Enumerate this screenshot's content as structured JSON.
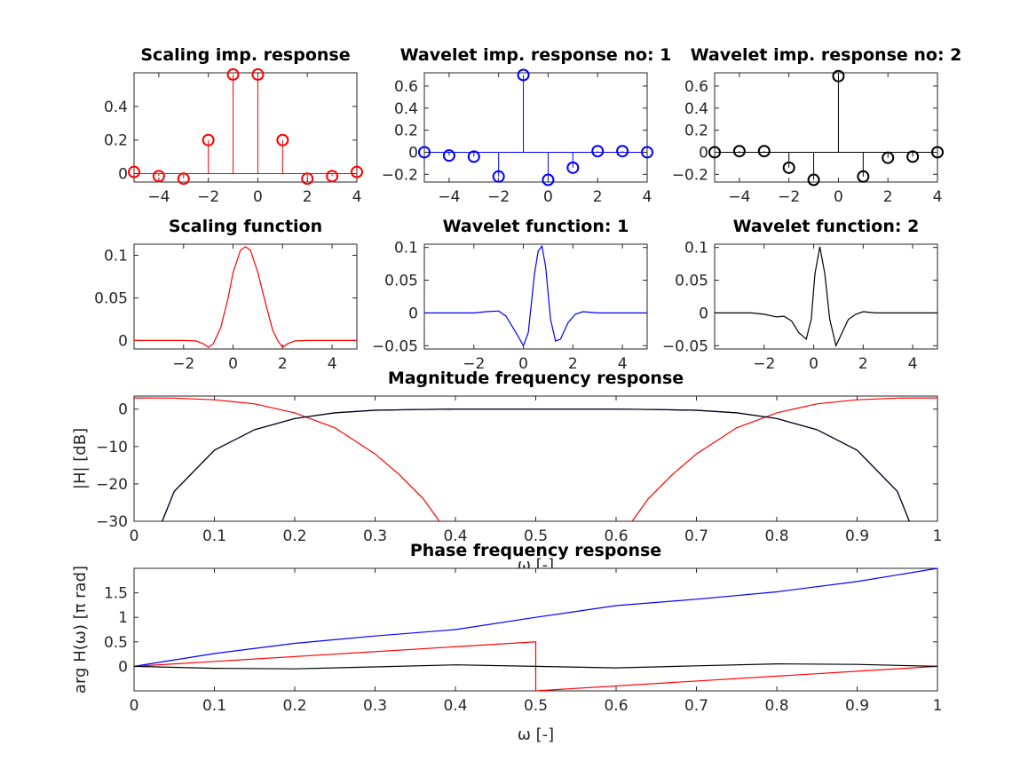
{
  "chart_data": [
    {
      "type": "stem",
      "title": "Scaling imp. response",
      "color": "#ff0000",
      "x": [
        -5,
        -4,
        -3,
        -2,
        -1,
        0,
        1,
        2,
        3,
        4
      ],
      "values": [
        0.01,
        -0.015,
        -0.03,
        0.2,
        0.59,
        0.59,
        0.2,
        -0.03,
        -0.015,
        0.01
      ],
      "xlim": [
        -5,
        4
      ],
      "ylim": [
        -0.05,
        0.6
      ],
      "xticks": [
        -4,
        -2,
        0,
        2,
        4
      ],
      "yticks": [
        0,
        0.2,
        0.4
      ]
    },
    {
      "type": "stem",
      "title": "Wavelet imp. response no: 1",
      "color": "#0000ff",
      "x": [
        -5,
        -4,
        -3,
        -2,
        -1,
        0,
        1,
        2,
        3,
        4
      ],
      "values": [
        0.0,
        -0.03,
        -0.04,
        -0.22,
        0.7,
        -0.25,
        -0.14,
        0.01,
        0.01,
        0.0
      ],
      "xlim": [
        -5,
        4
      ],
      "ylim": [
        -0.27,
        0.72
      ],
      "xticks": [
        -4,
        -2,
        0,
        2,
        4
      ],
      "yticks": [
        -0.2,
        0,
        0.2,
        0.4,
        0.6
      ]
    },
    {
      "type": "stem",
      "title": "Wavelet imp. response no: 2",
      "color": "#000000",
      "x": [
        -5,
        -4,
        -3,
        -2,
        -1,
        0,
        1,
        2,
        3,
        4
      ],
      "values": [
        0.0,
        0.01,
        0.01,
        -0.14,
        -0.25,
        0.69,
        -0.22,
        -0.05,
        -0.04,
        0.0
      ],
      "xlim": [
        -5,
        4
      ],
      "ylim": [
        -0.27,
        0.72
      ],
      "xticks": [
        -4,
        -2,
        0,
        2,
        4
      ],
      "yticks": [
        -0.2,
        0,
        0.2,
        0.4,
        0.6
      ]
    },
    {
      "type": "line",
      "title": "Scaling function",
      "color": "#ff0000",
      "x": [
        -4,
        -2,
        -1.5,
        -1.2,
        -1,
        -0.8,
        -0.5,
        -0.2,
        0,
        0.3,
        0.5,
        0.7,
        1,
        1.3,
        1.6,
        1.8,
        2,
        2.2,
        2.5,
        3,
        5
      ],
      "values": [
        0,
        0,
        -0.0005,
        -0.004,
        -0.008,
        -0.004,
        0.015,
        0.05,
        0.08,
        0.106,
        0.11,
        0.106,
        0.08,
        0.045,
        0.012,
        0.0,
        -0.008,
        -0.004,
        -0.0005,
        0,
        0
      ],
      "xlim": [
        -4,
        5
      ],
      "ylim": [
        -0.01,
        0.113
      ],
      "xticks": [
        -2,
        0,
        2,
        4
      ],
      "yticks": [
        0,
        0.05,
        0.1
      ]
    },
    {
      "type": "line",
      "title": "Wavelet function: 1",
      "color": "#0000ff",
      "x": [
        -4,
        -2,
        -1.5,
        -1,
        -0.7,
        -0.3,
        0,
        0.2,
        0.45,
        0.6,
        0.75,
        0.9,
        1.1,
        1.3,
        1.5,
        1.8,
        2.1,
        2.4,
        3,
        5
      ],
      "values": [
        0,
        0,
        0.002,
        0.003,
        -0.005,
        -0.03,
        -0.05,
        -0.03,
        0.06,
        0.095,
        0.102,
        0.07,
        -0.01,
        -0.043,
        -0.04,
        -0.015,
        -0.002,
        0.002,
        0,
        0
      ],
      "xlim": [
        -4,
        5
      ],
      "ylim": [
        -0.055,
        0.105
      ],
      "xticks": [
        -2,
        0,
        2,
        4
      ],
      "yticks": [
        -0.05,
        0,
        0.05,
        0.1
      ]
    },
    {
      "type": "line",
      "title": "Wavelet function: 2",
      "color": "#000000",
      "x": [
        -4,
        -2.5,
        -2,
        -1.5,
        -1.2,
        -0.9,
        -0.6,
        -0.3,
        -0.1,
        0.05,
        0.25,
        0.45,
        0.65,
        0.9,
        1.15,
        1.4,
        1.7,
        2,
        2.5,
        5
      ],
      "values": [
        0,
        0,
        -0.002,
        -0.006,
        -0.005,
        -0.012,
        -0.03,
        -0.04,
        -0.01,
        0.06,
        0.101,
        0.06,
        -0.01,
        -0.05,
        -0.03,
        -0.01,
        -0.002,
        0.002,
        0,
        0
      ],
      "xlim": [
        -4,
        5
      ],
      "ylim": [
        -0.055,
        0.105
      ],
      "xticks": [
        -2,
        0,
        2,
        4
      ],
      "yticks": [
        -0.05,
        0,
        0.05,
        0.1
      ]
    },
    {
      "type": "line",
      "title": "Magnitude frequency response",
      "ylabel": "|H| [dB]",
      "xlabel": "ω [-]",
      "xlim": [
        0,
        1
      ],
      "ylim": [
        -30,
        3.5
      ],
      "xticks": [
        0,
        0.1,
        0.2,
        0.3,
        0.4,
        0.5,
        0.6,
        0.7,
        0.8,
        0.9,
        1
      ],
      "yticks": [
        -30,
        -20,
        -10,
        0
      ],
      "series": [
        {
          "color": "#ff0000",
          "x": [
            0,
            0.05,
            0.1,
            0.15,
            0.2,
            0.25,
            0.3,
            0.33,
            0.36,
            0.38
          ],
          "values": [
            3,
            2.95,
            2.5,
            1.4,
            -1,
            -5,
            -12,
            -17.5,
            -24,
            -30
          ]
        },
        {
          "color": "#ff0000",
          "x": [
            0.62,
            0.64,
            0.67,
            0.7,
            0.75,
            0.8,
            0.85,
            0.9,
            0.95,
            1
          ],
          "values": [
            -30,
            -24,
            -17.5,
            -12,
            -5,
            -1,
            1.4,
            2.5,
            2.95,
            3
          ]
        },
        {
          "color": "#0000ff",
          "x": [
            0.035,
            0.05,
            0.1,
            0.15,
            0.2,
            0.25,
            0.3,
            0.35,
            0.4,
            0.5,
            0.6,
            0.65,
            0.7,
            0.75,
            0.8,
            0.85,
            0.9,
            0.95,
            0.965
          ],
          "values": [
            -30,
            -22,
            -11,
            -5.5,
            -2.5,
            -1,
            -0.3,
            -0.1,
            0,
            0,
            0,
            -0.1,
            -0.3,
            -1,
            -2.5,
            -5.5,
            -11,
            -22,
            -30
          ]
        },
        {
          "color": "#000000",
          "x": [
            0.035,
            0.05,
            0.1,
            0.15,
            0.2,
            0.25,
            0.3,
            0.35,
            0.4,
            0.5,
            0.6,
            0.65,
            0.7,
            0.75,
            0.8,
            0.85,
            0.9,
            0.95,
            0.965
          ],
          "values": [
            -30,
            -22,
            -11,
            -5.5,
            -2.5,
            -1,
            -0.3,
            -0.1,
            0,
            0,
            0,
            -0.1,
            -0.3,
            -1,
            -2.5,
            -5.5,
            -11,
            -22,
            -30
          ]
        }
      ]
    },
    {
      "type": "line",
      "title": "Phase frequency response",
      "ylabel": "arg H(ω) [π rad]",
      "xlabel": "ω [-]",
      "xlim": [
        0,
        1
      ],
      "ylim": [
        -0.5,
        2
      ],
      "xticks": [
        0,
        0.1,
        0.2,
        0.3,
        0.4,
        0.5,
        0.6,
        0.7,
        0.8,
        0.9,
        1
      ],
      "yticks": [
        0,
        0.5,
        1,
        1.5
      ],
      "series": [
        {
          "color": "#0000ff",
          "x": [
            0,
            0.1,
            0.2,
            0.3,
            0.4,
            0.5,
            0.6,
            0.7,
            0.8,
            0.9,
            1
          ],
          "values": [
            0,
            0.26,
            0.47,
            0.62,
            0.75,
            1.0,
            1.24,
            1.37,
            1.52,
            1.73,
            2.0
          ]
        },
        {
          "color": "#ff0000",
          "x": [
            0,
            0.5,
            0.5,
            1
          ],
          "values": [
            0,
            0.5,
            -0.5,
            0
          ]
        },
        {
          "color": "#000000",
          "x": [
            0,
            0.1,
            0.2,
            0.3,
            0.4,
            0.5,
            0.6,
            0.7,
            0.8,
            0.9,
            1
          ],
          "values": [
            0,
            -0.04,
            -0.05,
            -0.01,
            0.03,
            0,
            -0.03,
            0.01,
            0.05,
            0.04,
            0
          ]
        }
      ]
    }
  ]
}
